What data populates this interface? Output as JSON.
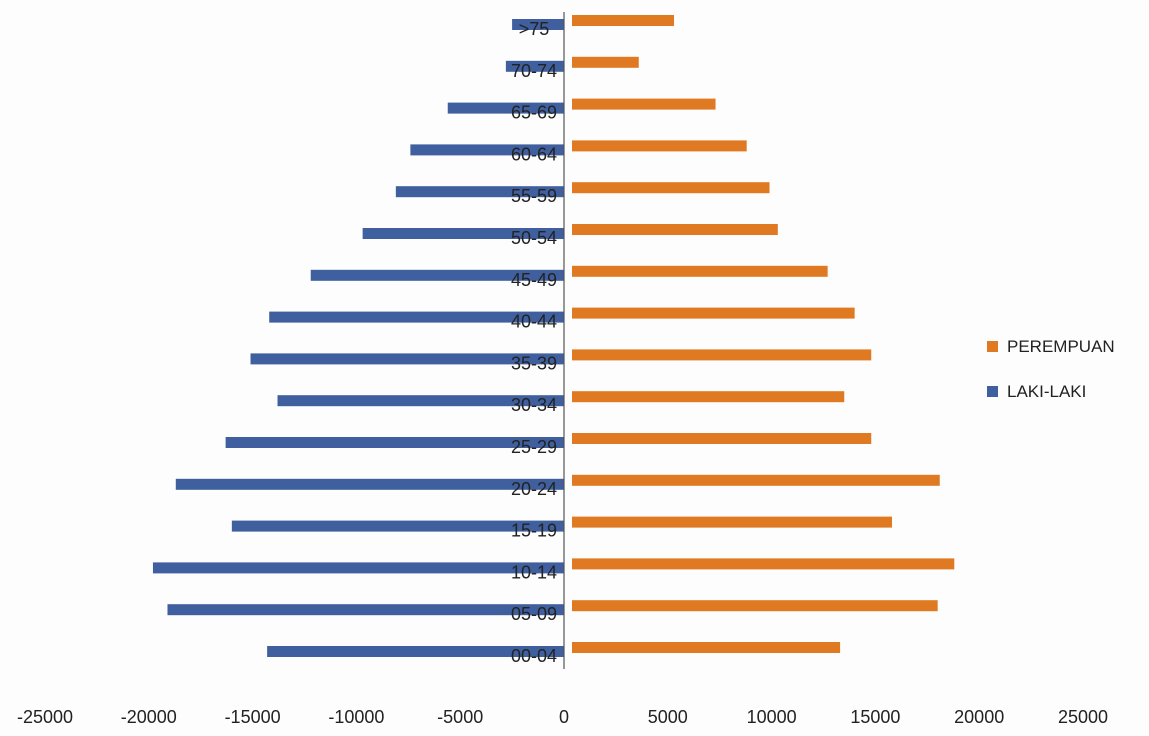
{
  "chart_data": {
    "type": "bar",
    "orientation": "horizontal",
    "title": "",
    "xlabel": "",
    "ylabel": "",
    "categories": [
      "00-04",
      "05-09",
      "10-14",
      "15-19",
      "20-24",
      "25-29",
      "30-34",
      "35-39",
      "40-44",
      "45-49",
      "50-54",
      "55-59",
      "60-64",
      "65-69",
      "70-74",
      ">75"
    ],
    "series": [
      {
        "name": "PEREMPUAN",
        "color": "#e07a22",
        "values": [
          13300,
          18000,
          18800,
          15800,
          18100,
          14800,
          13500,
          14800,
          14000,
          12700,
          10300,
          9900,
          8800,
          7300,
          3600,
          5300
        ]
      },
      {
        "name": "LAKI-LAKI",
        "color": "#3f5f9e",
        "values": [
          -14300,
          -19100,
          -19800,
          -16000,
          -18700,
          -16300,
          -13800,
          -15100,
          -14200,
          -12200,
          -9700,
          -8100,
          -7400,
          -5600,
          -2800,
          -2500
        ]
      }
    ],
    "xlim": [
      -25000,
      25000
    ],
    "xticks": [
      "-25000",
      "-20000",
      "-15000",
      "-10000",
      "-5000",
      "0",
      "5000",
      "10000",
      "15000",
      "20000",
      "25000"
    ],
    "grid": false,
    "legend_position": "right"
  }
}
